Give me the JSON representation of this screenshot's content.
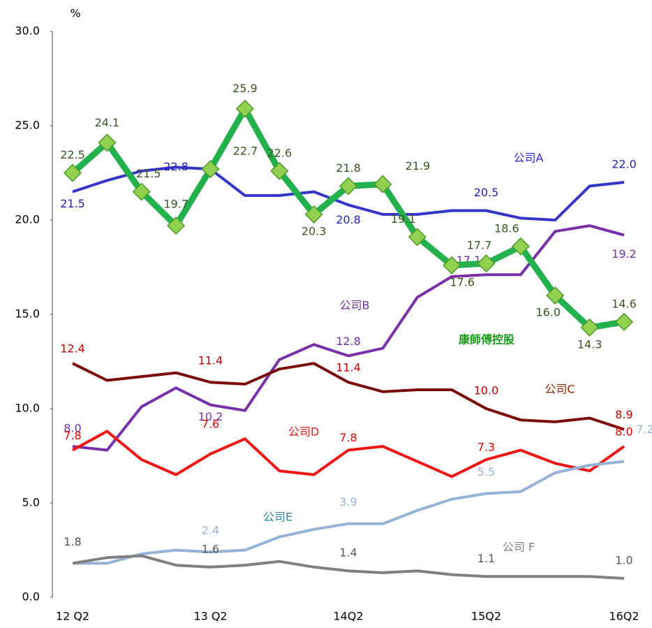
{
  "chart_data": {
    "type": "line",
    "y_label": "%",
    "categories": [
      "12 Q2",
      null,
      null,
      null,
      "13 Q2",
      null,
      null,
      null,
      "14Q2",
      null,
      null,
      null,
      "15Q2",
      null,
      null,
      null,
      "16Q2"
    ],
    "ylim": [
      0,
      30
    ],
    "yticks": [
      {
        "value": 0,
        "label": "0.0"
      },
      {
        "value": 5,
        "label": "5.0"
      },
      {
        "value": 10,
        "label": "10.0"
      },
      {
        "value": 15,
        "label": "15.0"
      },
      {
        "value": 20,
        "label": "20.0"
      },
      {
        "value": 25,
        "label": "25.0"
      },
      {
        "value": 30,
        "label": "30.0"
      }
    ],
    "series": [
      {
        "name": "公司A",
        "color": "#3535c8",
        "values": [
          21.5,
          22.1,
          22.6,
          22.8,
          22.7,
          21.3,
          21.3,
          21.5,
          20.8,
          20.3,
          20.3,
          20.5,
          20.5,
          20.1,
          20.0,
          21.8,
          22.0
        ],
        "value_labels": [
          "21.5",
          null,
          null,
          "22.8",
          null,
          null,
          null,
          null,
          "20.8",
          null,
          null,
          null,
          "20.5",
          null,
          null,
          null,
          "22.0"
        ]
      },
      {
        "name": "公司B",
        "color": "#7a30a8",
        "values": [
          8.0,
          7.8,
          10.1,
          11.1,
          10.2,
          9.9,
          12.6,
          13.4,
          12.8,
          13.2,
          15.9,
          17.0,
          17.1,
          17.1,
          19.4,
          19.7,
          19.2
        ],
        "value_labels": [
          "8.0",
          null,
          null,
          null,
          "10.2",
          null,
          null,
          null,
          "12.8",
          null,
          null,
          null,
          "17.1",
          null,
          null,
          null,
          "19.2"
        ]
      },
      {
        "name": "公司C",
        "color": "#7b0a0a",
        "values": [
          12.4,
          11.5,
          11.7,
          11.9,
          11.4,
          11.3,
          12.1,
          12.4,
          11.4,
          10.9,
          11.0,
          11.0,
          10.0,
          9.4,
          9.3,
          9.5,
          8.9
        ],
        "value_labels": [
          "12.4",
          null,
          null,
          null,
          "11.4",
          null,
          null,
          null,
          "11.4",
          null,
          null,
          null,
          "10.0",
          null,
          null,
          null,
          "8.9"
        ]
      },
      {
        "name": "公司D",
        "color": "#ee1515",
        "values": [
          7.8,
          8.8,
          7.3,
          6.5,
          7.6,
          8.4,
          6.7,
          6.5,
          7.8,
          8.0,
          7.2,
          6.4,
          7.3,
          7.8,
          7.1,
          6.7,
          8.0
        ],
        "value_labels": [
          "7.8",
          null,
          null,
          null,
          "7.6",
          null,
          null,
          null,
          "7.8",
          null,
          null,
          null,
          "7.3",
          null,
          null,
          null,
          "8.0"
        ]
      },
      {
        "name": "公司E",
        "color": "#95b3d7",
        "values": [
          1.8,
          1.8,
          2.3,
          2.5,
          2.4,
          2.5,
          3.2,
          3.6,
          3.9,
          3.9,
          4.6,
          5.2,
          5.5,
          5.6,
          6.6,
          7.0,
          7.2
        ],
        "value_labels": [
          "1.8",
          null,
          null,
          null,
          "2.4",
          null,
          null,
          null,
          "3.9",
          null,
          null,
          null,
          "5.5",
          null,
          null,
          null,
          "7.2"
        ]
      },
      {
        "name": "公司 F",
        "color": "#808080",
        "values": [
          1.8,
          2.1,
          2.2,
          1.7,
          1.6,
          1.7,
          1.9,
          1.6,
          1.4,
          1.3,
          1.4,
          1.2,
          1.1,
          1.1,
          1.1,
          1.1,
          1.0
        ],
        "value_labels": [
          "1.8",
          null,
          null,
          null,
          "1.6",
          null,
          null,
          null,
          "1.4",
          null,
          null,
          null,
          "1.1",
          null,
          null,
          null,
          "1.0"
        ]
      },
      {
        "name": "康師傅控股",
        "color": "#22b14c",
        "values": [
          22.5,
          24.1,
          21.5,
          19.7,
          22.7,
          25.9,
          22.6,
          20.3,
          21.8,
          21.9,
          19.1,
          17.6,
          17.7,
          18.6,
          16.0,
          14.3,
          14.6
        ],
        "value_labels": [
          "22.5",
          "24.1",
          "21.5",
          "19.7",
          "22.7",
          "25.9",
          "22.6",
          "20.3",
          "21.8",
          "21.9",
          "19.1",
          "17.6",
          "17.7",
          "18.6",
          "16.0",
          "14.3",
          "14.6"
        ]
      }
    ]
  }
}
